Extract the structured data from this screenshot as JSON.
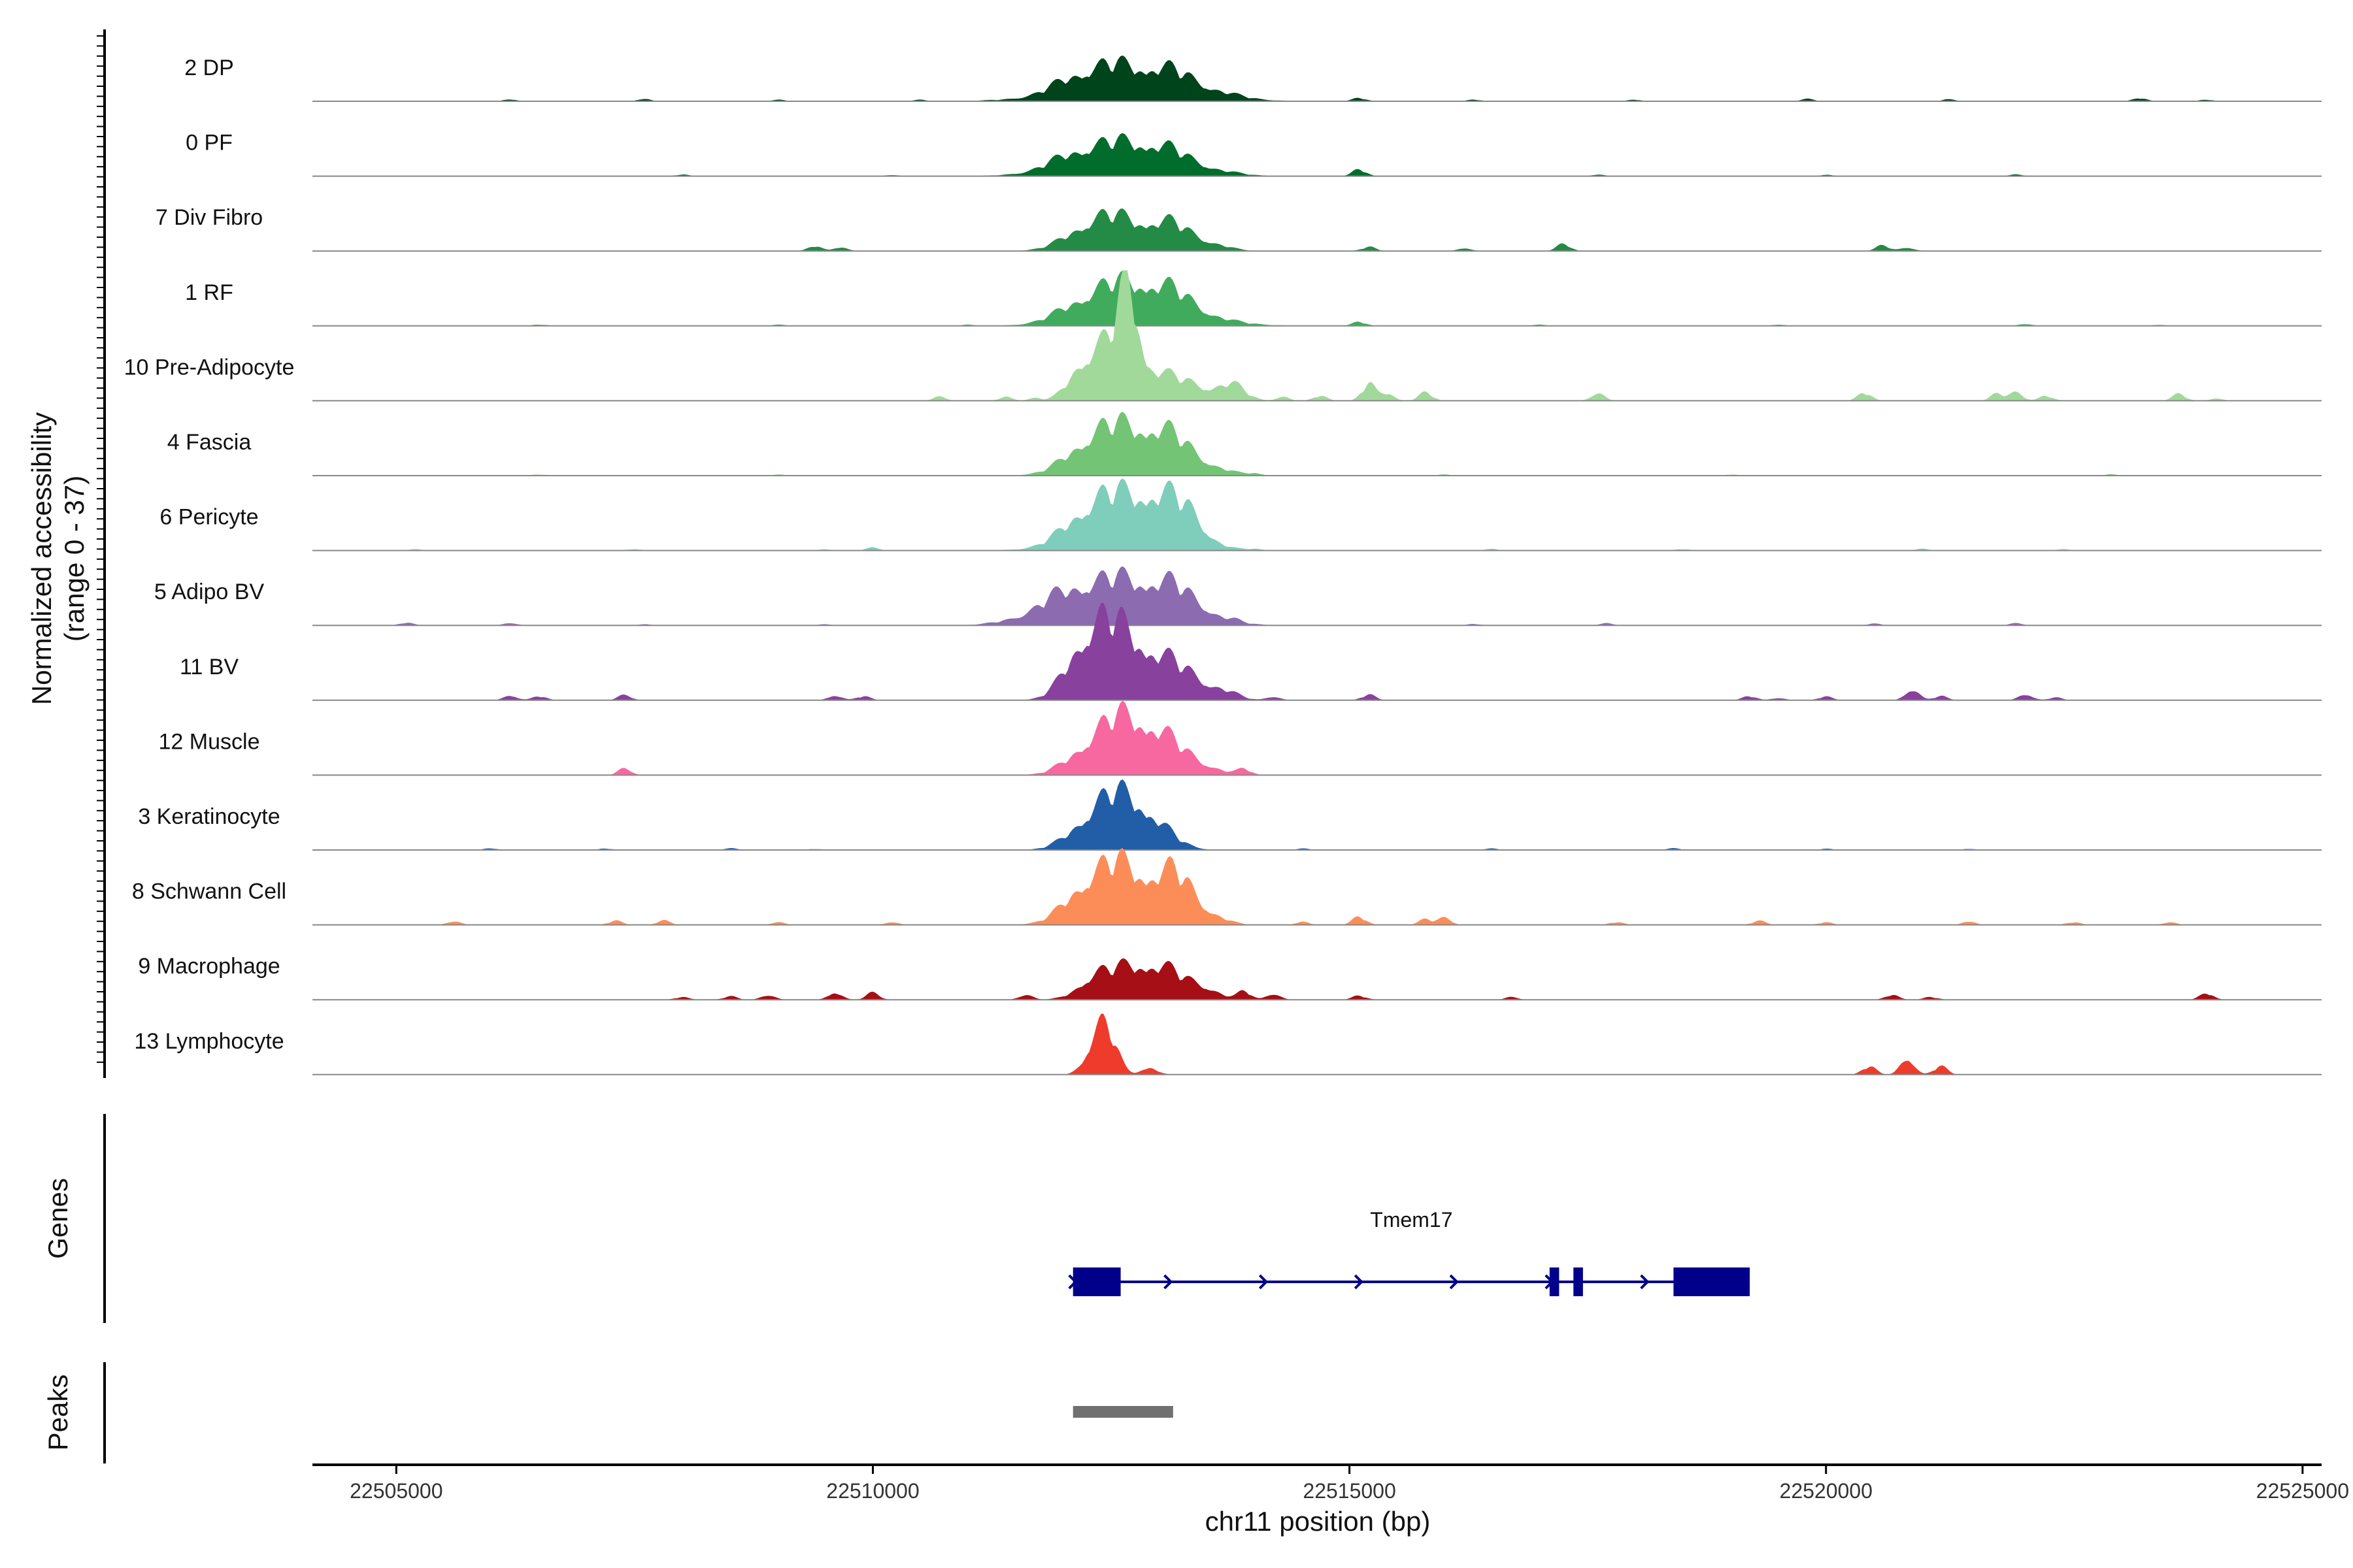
{
  "chart_data": {
    "type": "area",
    "title": "",
    "ylabel": "Normalized accessibility",
    "ylabel_range": "(range 0 - 37)",
    "y_range": [
      0,
      37
    ],
    "xlabel": "chr11 position (bp)",
    "x_range": [
      22504120,
      22525200
    ],
    "x_ticks": [
      22505000,
      22510000,
      22515000,
      22520000,
      22525000
    ],
    "x_tick_labels": [
      "22505000",
      "22510000",
      "22515000",
      "22520000",
      "22525000"
    ],
    "tracks": [
      {
        "name": "2 DP",
        "color": "#00441B",
        "peaks": [
          [
            22512700,
            8,
            600
          ],
          [
            22512400,
            5,
            300
          ],
          [
            22513050,
            5,
            280
          ],
          [
            22512100,
            2,
            250
          ],
          [
            22513500,
            1.5,
            300
          ]
        ],
        "bumps": [
          [
            22506200,
            0.8
          ],
          [
            22507600,
            1
          ],
          [
            22509000,
            0.6
          ],
          [
            22510500,
            0.5
          ],
          [
            22515100,
            1.2
          ],
          [
            22516300,
            0.7
          ],
          [
            22518000,
            0.6
          ],
          [
            22519800,
            0.8
          ],
          [
            22521300,
            0.7
          ],
          [
            22523300,
            1.2
          ],
          [
            22524000,
            0.6
          ]
        ]
      },
      {
        "name": "0 PF",
        "color": "#006D2C",
        "peaks": [
          [
            22512600,
            9,
            500
          ],
          [
            22512200,
            4,
            300
          ],
          [
            22513000,
            5,
            300
          ],
          [
            22513500,
            1.2,
            300
          ]
        ],
        "bumps": [
          [
            22508000,
            0.6
          ],
          [
            22510200,
            0.5
          ],
          [
            22515100,
            2.5
          ],
          [
            22517600,
            0.6
          ],
          [
            22520000,
            0.5
          ],
          [
            22522000,
            0.6
          ]
        ]
      },
      {
        "name": "7 Div Fibro",
        "color": "#238B45",
        "peaks": [
          [
            22512700,
            10,
            400
          ],
          [
            22512300,
            6,
            250
          ],
          [
            22513150,
            5,
            200
          ],
          [
            22513550,
            2,
            180
          ]
        ],
        "bumps": [
          [
            22509400,
            2
          ],
          [
            22509650,
            1.5
          ],
          [
            22515200,
            1.5
          ],
          [
            22516200,
            1.2
          ],
          [
            22517250,
            2.5
          ],
          [
            22520600,
            2
          ],
          [
            22520850,
            1.5
          ]
        ]
      },
      {
        "name": "1 RF",
        "color": "#41AB5D",
        "peaks": [
          [
            22512700,
            12,
            450
          ],
          [
            22512300,
            5,
            300
          ],
          [
            22513100,
            6,
            300
          ],
          [
            22513600,
            1,
            400
          ]
        ],
        "bumps": [
          [
            22506500,
            0.5
          ],
          [
            22509000,
            0.5
          ],
          [
            22511000,
            0.5
          ],
          [
            22515100,
            1.5
          ],
          [
            22517000,
            0.5
          ],
          [
            22519500,
            0.6
          ],
          [
            22522100,
            0.8
          ],
          [
            22523500,
            0.5
          ]
        ]
      },
      {
        "name": "10 Pre-Adipocyte",
        "color": "#A1D99B",
        "peaks": [
          [
            22512600,
            18,
            150
          ],
          [
            22512200,
            12,
            150
          ],
          [
            22512400,
            9,
            150
          ],
          [
            22512900,
            10,
            200
          ],
          [
            22513300,
            6,
            200
          ],
          [
            22513750,
            6,
            150
          ],
          [
            22512700,
            22,
            90
          ]
        ],
        "bumps": [
          [
            22510700,
            1.5
          ],
          [
            22511400,
            1.5
          ],
          [
            22511700,
            1
          ],
          [
            22514300,
            1.5
          ],
          [
            22514700,
            2
          ],
          [
            22515200,
            6
          ],
          [
            22515400,
            3
          ],
          [
            22515800,
            3
          ],
          [
            22517600,
            3
          ],
          [
            22520400,
            3
          ],
          [
            22521800,
            2.5
          ],
          [
            22522000,
            3
          ],
          [
            22522300,
            2
          ],
          [
            22523700,
            2.5
          ],
          [
            22524100,
            1
          ]
        ]
      },
      {
        "name": "4 Fascia",
        "color": "#74C476",
        "peaks": [
          [
            22512700,
            15,
            400
          ],
          [
            22512300,
            7,
            250
          ],
          [
            22513100,
            7,
            250
          ],
          [
            22513500,
            2,
            250
          ]
        ],
        "bumps": [
          [
            22506500,
            0.4
          ],
          [
            22509000,
            0.4
          ],
          [
            22514000,
            0.6
          ],
          [
            22516000,
            0.4
          ],
          [
            22519000,
            0.4
          ],
          [
            22523000,
            0.5
          ]
        ]
      },
      {
        "name": "6 Pericyte",
        "color": "#7FCDBB",
        "peaks": [
          [
            22512700,
            16,
            450
          ],
          [
            22512300,
            8,
            250
          ],
          [
            22513050,
            9,
            250
          ],
          [
            22513350,
            5,
            150
          ]
        ],
        "bumps": [
          [
            22505200,
            0.4
          ],
          [
            22507500,
            0.6
          ],
          [
            22509500,
            0.5
          ],
          [
            22510000,
            1
          ],
          [
            22514000,
            0.4
          ],
          [
            22516500,
            0.5
          ],
          [
            22518500,
            0.5
          ],
          [
            22521000,
            0.6
          ],
          [
            22522500,
            0.4
          ]
        ]
      },
      {
        "name": "5 Adipo BV",
        "color": "#8C6BB1",
        "peaks": [
          [
            22512700,
            16,
            500
          ],
          [
            22512100,
            6,
            300
          ],
          [
            22513200,
            5,
            250
          ],
          [
            22511700,
            2,
            300
          ]
        ],
        "bumps": [
          [
            22505100,
            1
          ],
          [
            22506200,
            1
          ],
          [
            22507600,
            0.5
          ],
          [
            22509500,
            0.5
          ],
          [
            22513800,
            0.6
          ],
          [
            22516300,
            0.6
          ],
          [
            22517700,
            0.8
          ],
          [
            22520500,
            0.6
          ],
          [
            22522000,
            0.8
          ]
        ]
      },
      {
        "name": "11 BV",
        "color": "#88419D",
        "peaks": [
          [
            22512400,
            18,
            250
          ],
          [
            22512800,
            17,
            300
          ],
          [
            22512200,
            9,
            200
          ],
          [
            22513300,
            7,
            250
          ],
          [
            22513700,
            2,
            150
          ]
        ],
        "bumps": [
          [
            22506200,
            2
          ],
          [
            22506500,
            1.5
          ],
          [
            22507400,
            2
          ],
          [
            22509600,
            2
          ],
          [
            22509900,
            1.5
          ],
          [
            22514200,
            1.5
          ],
          [
            22515200,
            2
          ],
          [
            22519200,
            1.5
          ],
          [
            22519500,
            1
          ],
          [
            22520000,
            1.5
          ],
          [
            22520900,
            4.5
          ],
          [
            22521200,
            1.5
          ],
          [
            22522100,
            2.5
          ],
          [
            22522400,
            1
          ]
        ]
      },
      {
        "name": "12 Muscle",
        "color": "#F768A1",
        "peaks": [
          [
            22512700,
            18,
            300
          ],
          [
            22512300,
            8,
            250
          ],
          [
            22513100,
            7,
            250
          ],
          [
            22513500,
            2,
            200
          ]
        ],
        "bumps": [
          [
            22507400,
            2.5
          ],
          [
            22513900,
            2
          ]
        ]
      },
      {
        "name": "3 Keratinocyte",
        "color": "#225EA8",
        "peaks": [
          [
            22512350,
            12,
            250
          ],
          [
            22512850,
            11,
            250
          ],
          [
            22512600,
            7,
            250
          ]
        ],
        "bumps": [
          [
            22506000,
            0.6
          ],
          [
            22507200,
            0.5
          ],
          [
            22508500,
            0.6
          ],
          [
            22509400,
            0.4
          ],
          [
            22514500,
            0.5
          ],
          [
            22516500,
            0.5
          ],
          [
            22518400,
            0.6
          ],
          [
            22520000,
            0.5
          ],
          [
            22521500,
            0.5
          ]
        ]
      },
      {
        "name": "8 Schwann Cell",
        "color": "#FC8D59",
        "peaks": [
          [
            22512600,
            22,
            350
          ],
          [
            22513200,
            14,
            200
          ],
          [
            22512200,
            5,
            200
          ],
          [
            22513600,
            2,
            150
          ]
        ],
        "bumps": [
          [
            22505600,
            1.5
          ],
          [
            22507300,
            1.5
          ],
          [
            22507800,
            1.5
          ],
          [
            22509000,
            1
          ],
          [
            22510200,
            1.2
          ],
          [
            22514500,
            1
          ],
          [
            22515100,
            3
          ],
          [
            22515800,
            2
          ],
          [
            22516000,
            2.5
          ],
          [
            22517800,
            1
          ],
          [
            22519300,
            1.5
          ],
          [
            22520000,
            1
          ],
          [
            22521500,
            1.5
          ],
          [
            22522600,
            1
          ],
          [
            22523600,
            1
          ]
        ]
      },
      {
        "name": "9 Macrophage",
        "color": "#A50F15",
        "peaks": [
          [
            22512700,
            11,
            300
          ],
          [
            22513100,
            7,
            250
          ],
          [
            22512300,
            5,
            150
          ],
          [
            22513500,
            3,
            150
          ]
        ],
        "bumps": [
          [
            22508000,
            1
          ],
          [
            22508500,
            1.2
          ],
          [
            22508900,
            2
          ],
          [
            22509600,
            3
          ],
          [
            22510000,
            2.5
          ],
          [
            22511600,
            2
          ],
          [
            22513900,
            3
          ],
          [
            22514200,
            2.5
          ],
          [
            22515100,
            1.5
          ],
          [
            22516700,
            1
          ],
          [
            22520700,
            2
          ],
          [
            22521100,
            1
          ],
          [
            22524000,
            2.5
          ]
        ]
      },
      {
        "name": "13 Lymphocyte",
        "color": "#EF3B2C",
        "peaks": [
          [
            22512370,
            16,
            120
          ],
          [
            22512500,
            6,
            100
          ],
          [
            22512900,
            3,
            80
          ]
        ],
        "bumps": [
          [
            22520450,
            3
          ],
          [
            22520850,
            7
          ],
          [
            22521200,
            3
          ]
        ]
      }
    ],
    "genes": {
      "label": "Genes",
      "name": "Tmem17",
      "color": "#00008B",
      "start": 22512100,
      "end": 22519200,
      "strand": "+",
      "exons": [
        [
          22512100,
          22512600
        ],
        [
          22517100,
          22517200
        ],
        [
          22517350,
          22517450
        ],
        [
          22518400,
          22519200
        ]
      ]
    },
    "peaks_track": {
      "label": "Peaks",
      "color": "#707070",
      "regions": [
        [
          22512100,
          22513150
        ]
      ]
    }
  }
}
